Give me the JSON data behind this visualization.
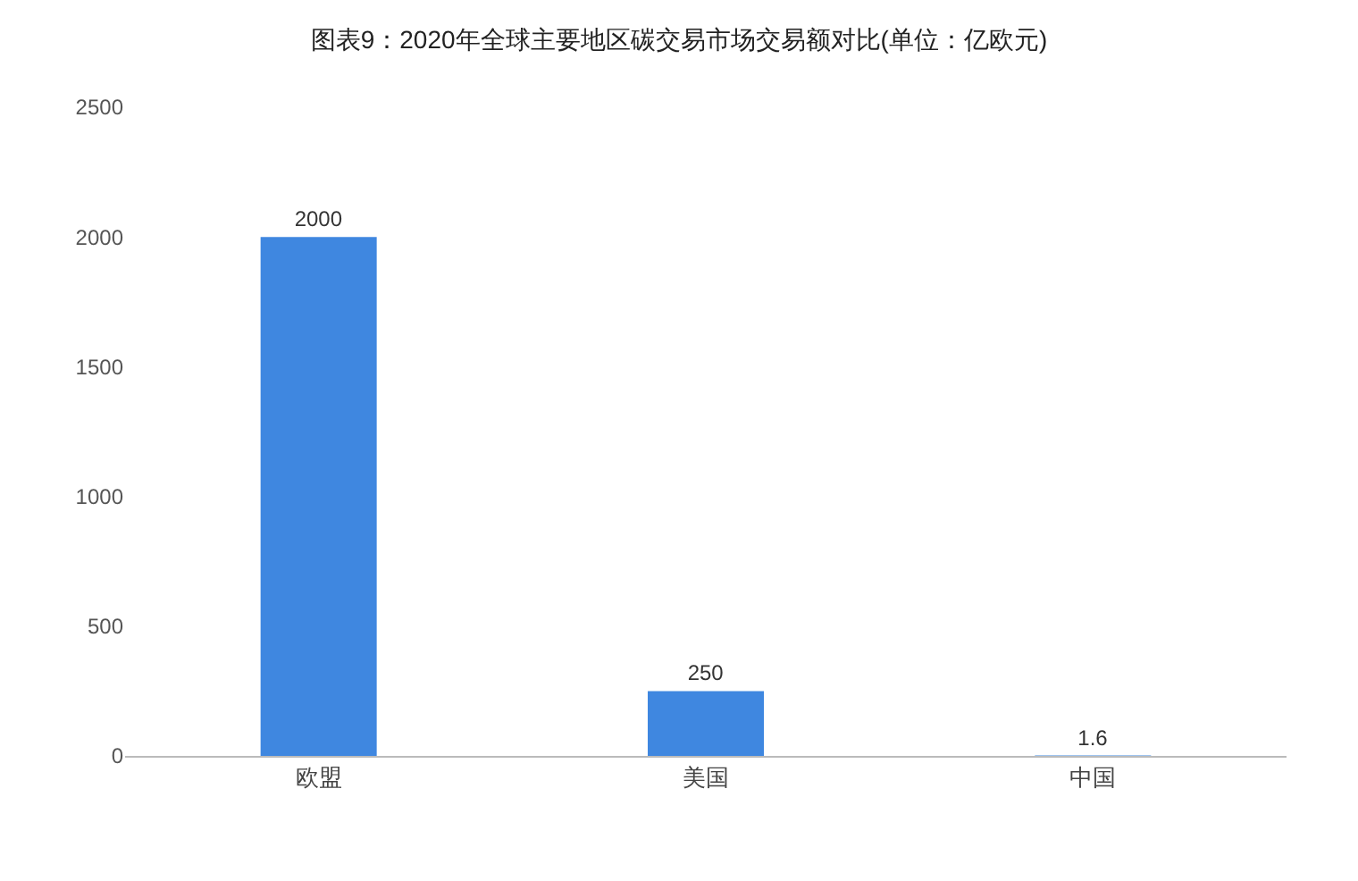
{
  "chart_data": {
    "type": "bar",
    "title": "图表9：2020年全球主要地区碳交易市场交易额对比(单位：亿欧元)",
    "categories": [
      "欧盟",
      "美国",
      "中国"
    ],
    "values": [
      2000,
      250,
      1.6
    ],
    "color": "#3f87e0",
    "ylim": [
      0,
      2500
    ],
    "yticks": [
      0,
      500,
      1000,
      1500,
      2000,
      2500
    ],
    "grid": false,
    "data_labels": true
  }
}
